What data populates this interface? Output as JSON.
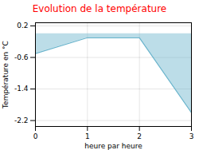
{
  "chart_data": {
    "type": "area",
    "title": "Evolution de la température",
    "title_color": "#ff0000",
    "xlabel": "heure par heure",
    "ylabel": "Température en °C",
    "x": [
      0,
      1,
      2,
      3
    ],
    "values": [
      -0.5,
      -0.1,
      -0.1,
      -2.0
    ],
    "color": "#6ab4cc",
    "xlim": [
      0,
      3.0
    ],
    "xticks": [
      0,
      1,
      2,
      3
    ],
    "ylim": [
      -2.35,
      0.28
    ],
    "yticks": [
      0.2,
      -0.6,
      -1.4,
      -2.2
    ],
    "grid": true
  }
}
